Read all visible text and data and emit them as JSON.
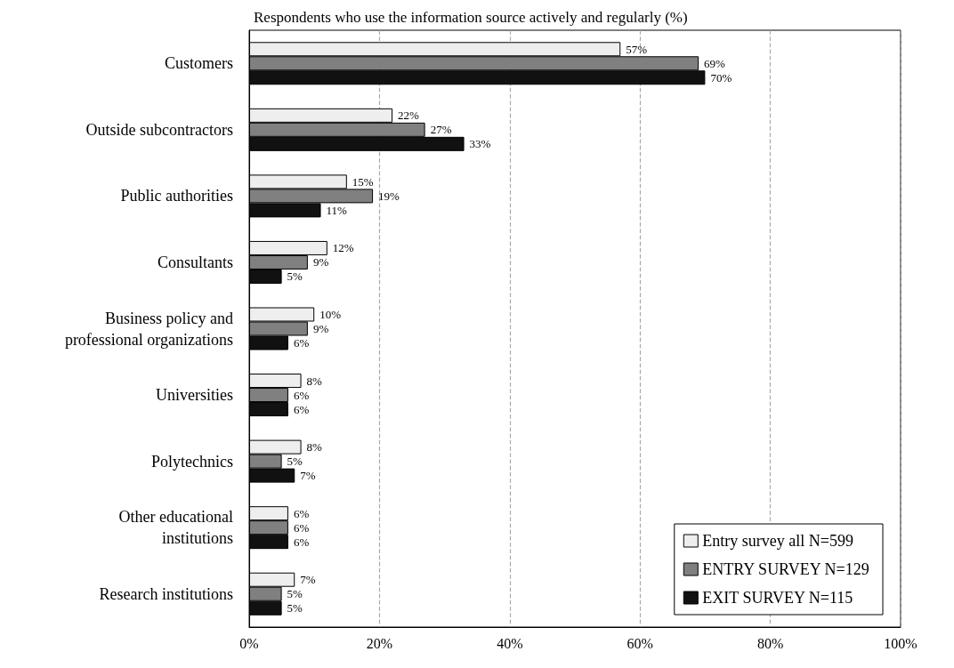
{
  "chart_data": {
    "type": "bar",
    "orientation": "horizontal",
    "title": "Respondents who use the information source actively and regularly (%)",
    "categories": [
      "Customers",
      "Outside subcontractors",
      "Public authorities",
      "Consultants",
      "Business policy and\nprofessional organizations",
      "Universities",
      "Polytechnics",
      "Other educational\ninstitutions",
      "Research institutions"
    ],
    "series": [
      {
        "name": "Entry survey all N=599",
        "color": "#eeeeee",
        "values": [
          57,
          22,
          15,
          12,
          10,
          8,
          8,
          6,
          7
        ],
        "value_labels": [
          "57%",
          "22%",
          "15%",
          "12%",
          "10%",
          "8%",
          "8%",
          "6%",
          "7%"
        ]
      },
      {
        "name": "ENTRY SURVEY N=129",
        "color": "#808080",
        "values": [
          69,
          27,
          19,
          9,
          9,
          6,
          5,
          6,
          5
        ],
        "value_labels": [
          "69%",
          "27%",
          "19%",
          "9%",
          "9%",
          "6%",
          "5%",
          "6%",
          "5%"
        ]
      },
      {
        "name": "EXIT SURVEY N=115",
        "color": "#111111",
        "values": [
          70,
          33,
          11,
          5,
          6,
          6,
          7,
          6,
          5
        ],
        "value_labels": [
          "70%",
          "33%",
          "11%",
          "5%",
          "6%",
          "6%",
          "7%",
          "6%",
          "5%"
        ]
      }
    ],
    "xlim": [
      0,
      100
    ],
    "xticks": [
      {
        "value": 0,
        "label": "0%"
      },
      {
        "value": 20,
        "label": "20%"
      },
      {
        "value": 40,
        "label": "40%"
      },
      {
        "value": 60,
        "label": "60%"
      },
      {
        "value": 80,
        "label": "80%"
      },
      {
        "value": 100,
        "label": "100%"
      }
    ],
    "grid": "x",
    "legend": "bottom right"
  }
}
